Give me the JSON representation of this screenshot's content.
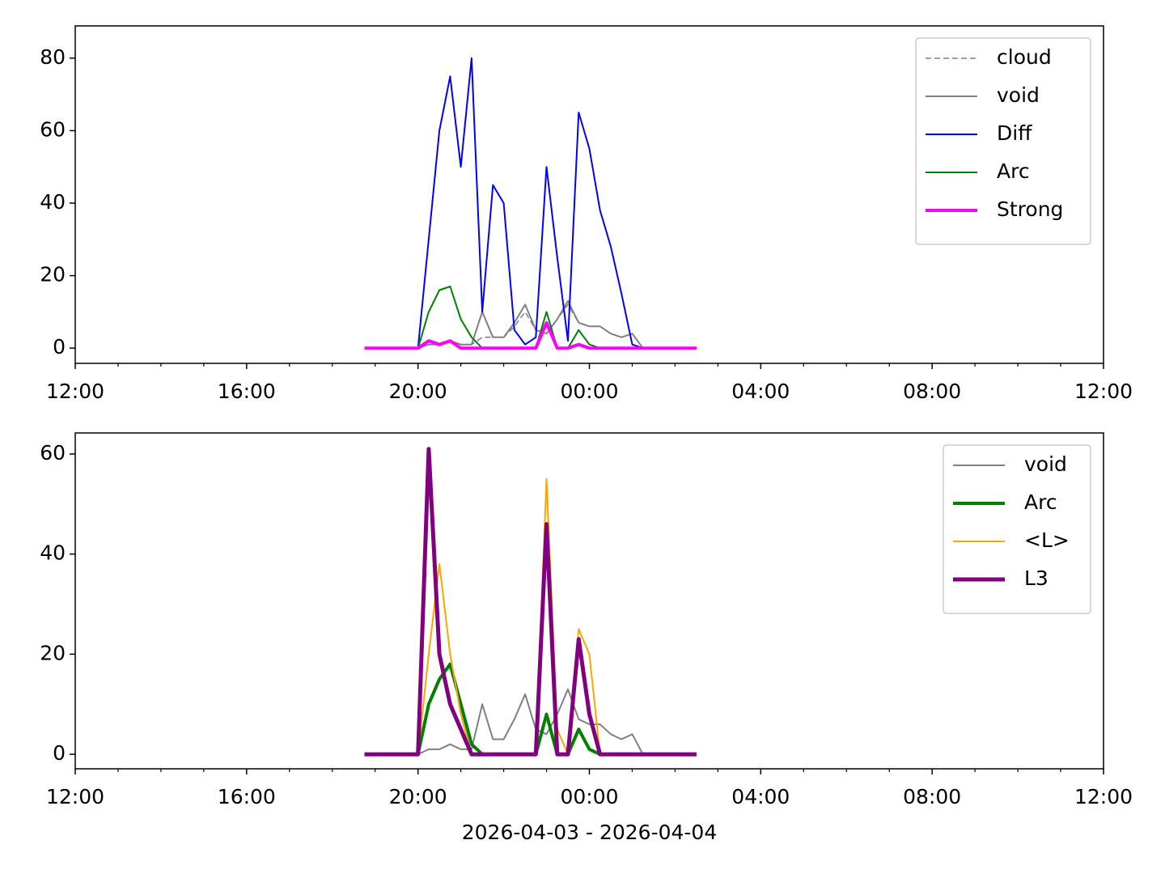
{
  "chart_data": [
    {
      "type": "line",
      "x": [
        6.75,
        7,
        7.25,
        7.5,
        7.75,
        8,
        8.25,
        8.5,
        8.75,
        9,
        9.25,
        9.5,
        9.75,
        10,
        10.25,
        10.5,
        10.75,
        11,
        11.25,
        11.5,
        11.75,
        12,
        12.25,
        12.5,
        12.75,
        13,
        13.25,
        13.5,
        13.75,
        14,
        14.25,
        14.5
      ],
      "series": [
        {
          "name": "cloud",
          "color": "#808080",
          "linestyle": "dashed",
          "linewidth": 1.5,
          "values": [
            0,
            0,
            0,
            0,
            0,
            0,
            1,
            1,
            2,
            1,
            1,
            3,
            3,
            3,
            6,
            10,
            5,
            4,
            8,
            12,
            7,
            6,
            6,
            4,
            3,
            4,
            0,
            0,
            0,
            0,
            0,
            0
          ]
        },
        {
          "name": "void",
          "color": "#808080",
          "linestyle": "solid",
          "linewidth": 2,
          "values": [
            0,
            0,
            0,
            0,
            0,
            0,
            1,
            1,
            2,
            1,
            1,
            10,
            3,
            3,
            7,
            12,
            5,
            4,
            8,
            13,
            7,
            6,
            6,
            4,
            3,
            4,
            0,
            0,
            0,
            0,
            0,
            0
          ]
        },
        {
          "name": "Diff",
          "color": "#0000ff",
          "linestyle": "solid",
          "linewidth": 2,
          "values": [
            0,
            0,
            0,
            0,
            0,
            0,
            30,
            60,
            75,
            50,
            80,
            10,
            45,
            40,
            5,
            1,
            3,
            50,
            25,
            2,
            65,
            55,
            38,
            28,
            15,
            1,
            0,
            0,
            0,
            0,
            0,
            0
          ]
        },
        {
          "name": "Arc",
          "color": "#008000",
          "linestyle": "solid",
          "linewidth": 2,
          "values": [
            0,
            0,
            0,
            0,
            0,
            0,
            10,
            16,
            17,
            8,
            3,
            0,
            0,
            0,
            0,
            0,
            0,
            10,
            0,
            0,
            5,
            1,
            0,
            0,
            0,
            0,
            0,
            0,
            0,
            0,
            0,
            0
          ]
        },
        {
          "name": "Strong",
          "color": "#ff00ff",
          "linestyle": "solid",
          "linewidth": 4,
          "values": [
            0,
            0,
            0,
            0,
            0,
            0,
            2,
            1,
            2,
            0,
            0,
            0,
            0,
            0,
            0,
            0,
            0,
            7,
            0,
            0,
            1,
            0,
            0,
            0,
            0,
            0,
            0,
            0,
            0,
            0,
            0,
            0
          ]
        }
      ],
      "xlim": [
        0,
        24
      ],
      "xticks": [
        {
          "value": 0,
          "label": "12:00"
        },
        {
          "value": 4,
          "label": "16:00"
        },
        {
          "value": 8,
          "label": "20:00"
        },
        {
          "value": 12,
          "label": "00:00"
        },
        {
          "value": 16,
          "label": "04:00"
        },
        {
          "value": 20,
          "label": "08:00"
        },
        {
          "value": 24,
          "label": "12:00"
        }
      ],
      "xminorticks": [
        1,
        2,
        3,
        5,
        6,
        7,
        9,
        10,
        11,
        13,
        14,
        15,
        17,
        18,
        19,
        21,
        22,
        23
      ],
      "ylim": [
        -4.2,
        88.9
      ],
      "yticks": [
        0,
        20,
        40,
        60,
        80
      ],
      "legend": "upper right"
    },
    {
      "type": "line",
      "x": [
        6.75,
        7,
        7.25,
        7.5,
        7.75,
        8,
        8.25,
        8.5,
        8.75,
        9,
        9.25,
        9.5,
        9.75,
        10,
        10.25,
        10.5,
        10.75,
        11,
        11.25,
        11.5,
        11.75,
        12,
        12.25,
        12.5,
        12.75,
        13,
        13.25,
        13.5,
        13.75,
        14,
        14.25,
        14.5
      ],
      "series": [
        {
          "name": "void",
          "color": "#808080",
          "linestyle": "solid",
          "linewidth": 2,
          "values": [
            0,
            0,
            0,
            0,
            0,
            0,
            1,
            1,
            2,
            1,
            1,
            10,
            3,
            3,
            7,
            12,
            5,
            4,
            8,
            13,
            7,
            6,
            6,
            4,
            3,
            4,
            0,
            0,
            0,
            0,
            0,
            0
          ]
        },
        {
          "name": "Arc",
          "color": "#008000",
          "linestyle": "solid",
          "linewidth": 4,
          "values": [
            0,
            0,
            0,
            0,
            0,
            0,
            10,
            15,
            18,
            10,
            2,
            0,
            0,
            0,
            0,
            0,
            0,
            8,
            0,
            0,
            5,
            1,
            0,
            0,
            0,
            0,
            0,
            0,
            0,
            0,
            0,
            0
          ]
        },
        {
          "name": "<L>",
          "color": "#ffa500",
          "linestyle": "solid",
          "linewidth": 2,
          "values": [
            0,
            0,
            0,
            0,
            0,
            0,
            20,
            38,
            20,
            8,
            0,
            0,
            0,
            0,
            0,
            0,
            0,
            55,
            5,
            0,
            25,
            20,
            0,
            0,
            0,
            0,
            0,
            0,
            0,
            0,
            0,
            0
          ]
        },
        {
          "name": "L3",
          "color": "#800080",
          "linestyle": "solid",
          "linewidth": 5,
          "values": [
            0,
            0,
            0,
            0,
            0,
            0,
            61,
            20,
            10,
            5,
            0,
            0,
            0,
            0,
            0,
            0,
            0,
            46,
            0,
            0,
            23,
            8,
            0,
            0,
            0,
            0,
            0,
            0,
            0,
            0,
            0,
            0
          ]
        }
      ],
      "xlim": [
        0,
        24
      ],
      "xticks": [
        {
          "value": 0,
          "label": "12:00"
        },
        {
          "value": 4,
          "label": "16:00"
        },
        {
          "value": 8,
          "label": "20:00"
        },
        {
          "value": 12,
          "label": "00:00"
        },
        {
          "value": 16,
          "label": "04:00"
        },
        {
          "value": 20,
          "label": "08:00"
        },
        {
          "value": 24,
          "label": "12:00"
        }
      ],
      "xminorticks": [
        1,
        2,
        3,
        5,
        6,
        7,
        9,
        10,
        11,
        13,
        14,
        15,
        17,
        18,
        19,
        21,
        22,
        23
      ],
      "ylim": [
        -2.9,
        64.2
      ],
      "yticks": [
        0,
        20,
        40,
        60
      ],
      "xlabel": "2026-04-03 - 2026-04-04",
      "legend": "upper right"
    }
  ]
}
